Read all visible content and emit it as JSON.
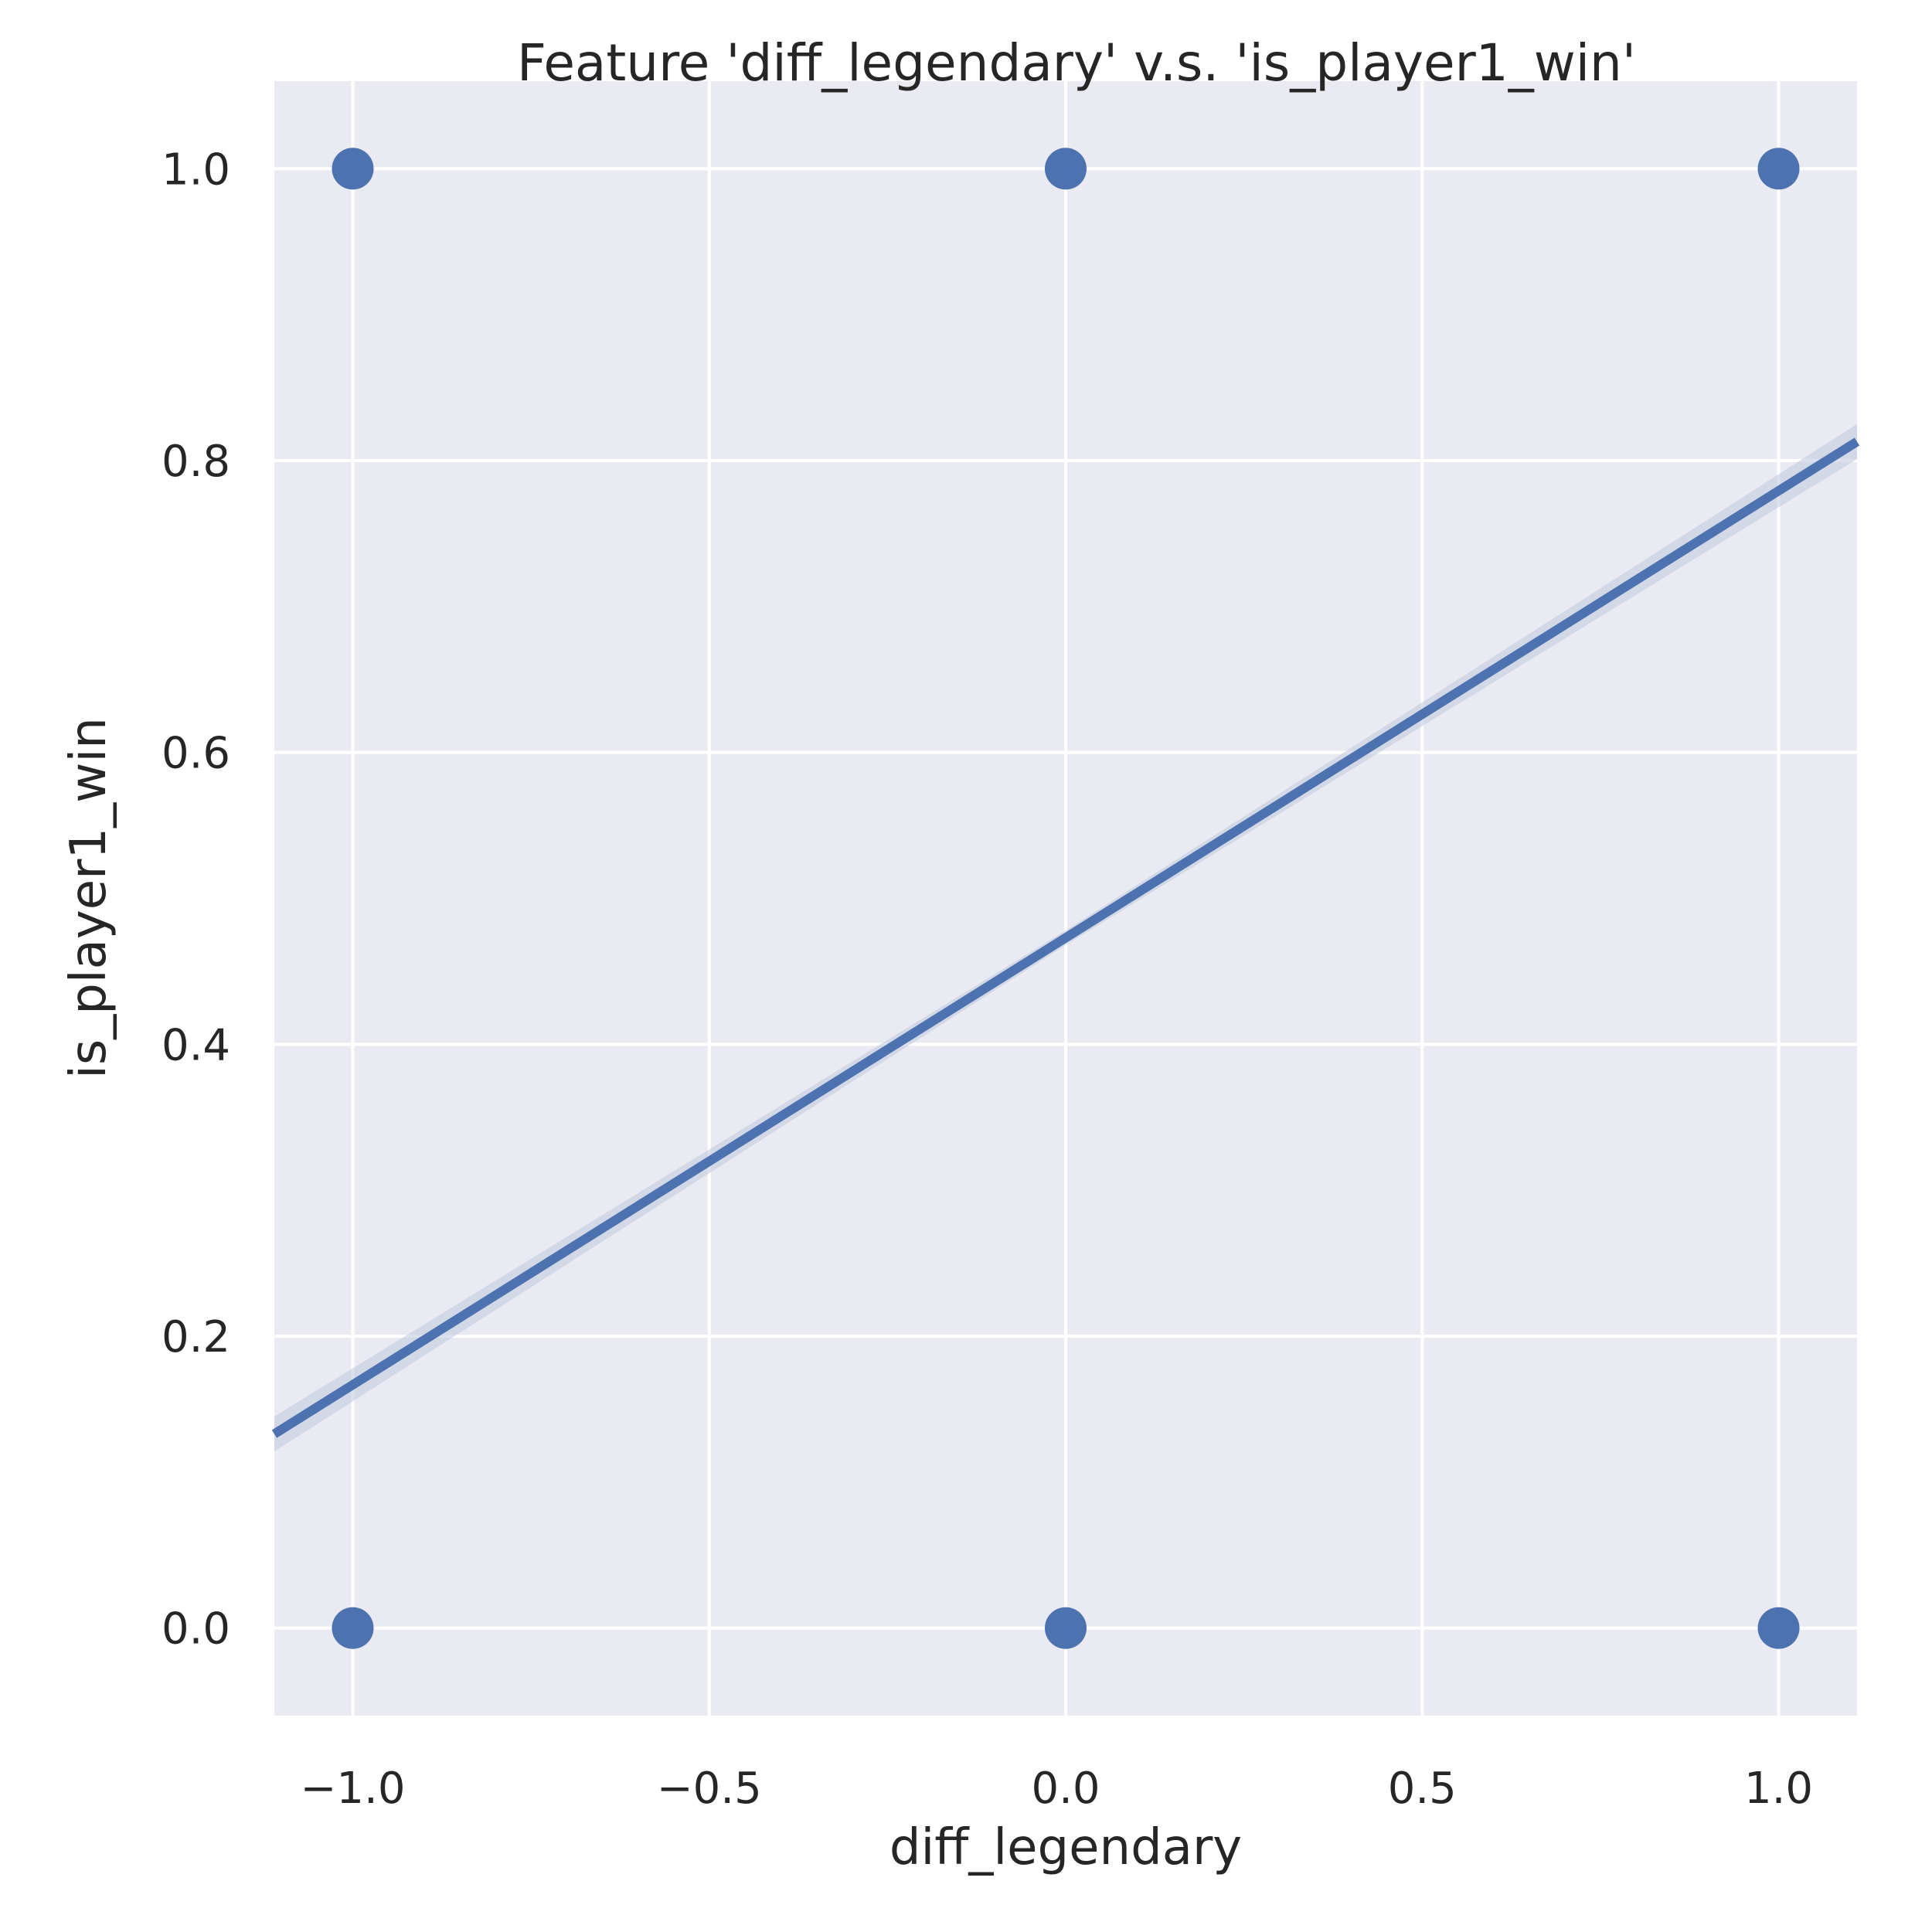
{
  "chart_data": {
    "type": "scatter",
    "title": "Feature 'diff_legendary' v.s. 'is_player1_win'",
    "xlabel": "diff_legendary",
    "ylabel": "is_player1_win",
    "xlim": [
      -1.11,
      1.11
    ],
    "ylim": [
      -0.06,
      1.06
    ],
    "xticks": [
      -1.0,
      -0.5,
      0.0,
      0.5,
      1.0
    ],
    "xtick_labels": [
      "−1.0",
      "−0.5",
      "0.0",
      "0.5",
      "1.0"
    ],
    "yticks": [
      0.0,
      0.2,
      0.4,
      0.6,
      0.8,
      1.0
    ],
    "ytick_labels": [
      "0.0",
      "0.2",
      "0.4",
      "0.6",
      "0.8",
      "1.0"
    ],
    "grid": true,
    "points": [
      {
        "x": -1.0,
        "y": 1.0
      },
      {
        "x": 0.0,
        "y": 1.0
      },
      {
        "x": 1.0,
        "y": 1.0
      },
      {
        "x": -1.0,
        "y": 0.0
      },
      {
        "x": 0.0,
        "y": 0.0
      },
      {
        "x": 1.0,
        "y": 0.0
      }
    ],
    "regression": {
      "x": [
        -1.11,
        1.11
      ],
      "y": [
        0.133,
        0.813
      ]
    },
    "colors": {
      "background": "#eaeaf2",
      "grid": "#ffffff",
      "marker": "#4c72b0",
      "line": "#4c72b0",
      "band": "#c3cbe0"
    }
  }
}
